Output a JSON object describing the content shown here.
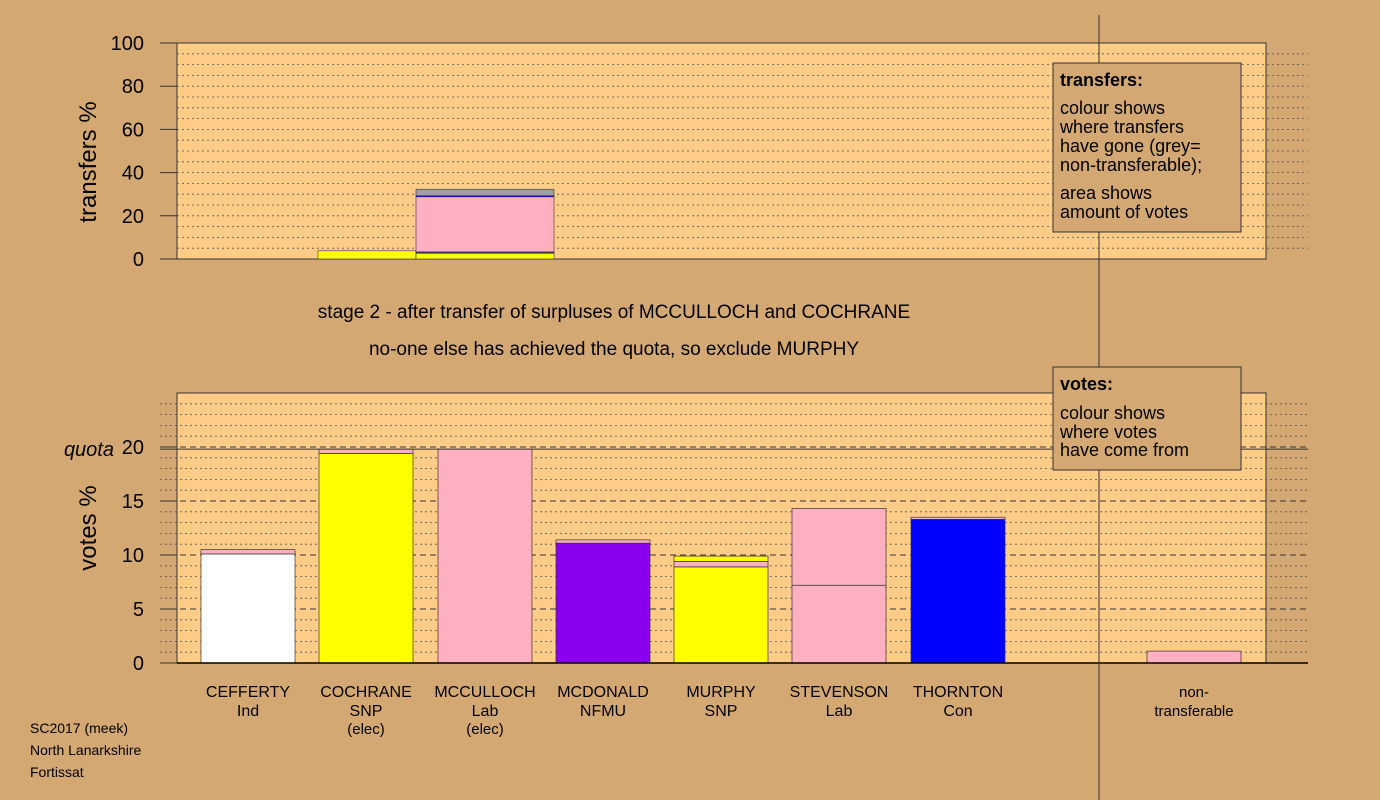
{
  "colors": {
    "background": "#d4a872",
    "plot_area": "#ffcc88",
    "ind": "#ffffff",
    "snp": "#ffff00",
    "lab": "#ffb0c0",
    "nfmu": "#8800ee",
    "con": "#0000ff",
    "non_transferable": "#a0a0a0"
  },
  "chart_data": [
    {
      "id": "transfers",
      "type": "bar",
      "stacked": true,
      "ylabel": "transfers %",
      "ylim": [
        0,
        100
      ],
      "yticks": [
        0,
        20,
        40,
        60,
        80,
        100
      ],
      "bars": [
        {
          "source": "COCHRANE",
          "segments": [
            {
              "label": "SNP",
              "value": 3.8,
              "color": "#ffff00"
            }
          ]
        },
        {
          "source": "MCCULLOCH",
          "segments": [
            {
              "label": "SNP",
              "value": 2.5,
              "color": "#ffff00"
            },
            {
              "label": "Ind",
              "value": 0.5,
              "color": "#ffffff"
            },
            {
              "label": "NFMU",
              "value": 0.3,
              "color": "#8800ee"
            },
            {
              "label": "Lab",
              "value": 25.5,
              "color": "#ffb0c0"
            },
            {
              "label": "Con",
              "value": 0.5,
              "color": "#0000ff"
            },
            {
              "label": "non-transferable",
              "value": 3.0,
              "color": "#a0a0a0"
            }
          ]
        }
      ],
      "legend": {
        "title": "transfers:",
        "lines1": [
          "colour shows",
          "where transfers",
          "have gone (grey=",
          "non-transferable);"
        ],
        "lines2": [
          "area shows",
          "amount of votes"
        ]
      }
    },
    {
      "id": "votes",
      "type": "bar",
      "stacked": true,
      "ylabel": "votes %",
      "ylim": [
        0,
        25
      ],
      "yticks": [
        0,
        5,
        10,
        15,
        20
      ],
      "quota": 19.8,
      "quota_label": "quota",
      "categories": [
        {
          "name": "CEFFERTY",
          "party": "Ind",
          "note": "",
          "segments": [
            {
              "value": 10.1,
              "color": "#ffffff"
            },
            {
              "value": 0.4,
              "color": "#ffb0c0"
            }
          ]
        },
        {
          "name": "COCHRANE",
          "party": "SNP",
          "note": "(elec)",
          "segments": [
            {
              "value": 19.4,
              "color": "#ffff00"
            },
            {
              "value": 0.4,
              "color": "#ffb0c0"
            }
          ]
        },
        {
          "name": "MCCULLOCH",
          "party": "Lab",
          "note": "(elec)",
          "segments": [
            {
              "value": 19.8,
              "color": "#ffb0c0"
            }
          ]
        },
        {
          "name": "MCDONALD",
          "party": "NFMU",
          "note": "",
          "segments": [
            {
              "value": 11.1,
              "color": "#8800ee"
            },
            {
              "value": 0.3,
              "color": "#ffb0c0"
            }
          ]
        },
        {
          "name": "MURPHY",
          "party": "SNP",
          "note": "",
          "segments": [
            {
              "value": 8.9,
              "color": "#ffff00"
            },
            {
              "value": 0.5,
              "color": "#ffb0c0"
            },
            {
              "value": 0.5,
              "color": "#ffff00"
            }
          ]
        },
        {
          "name": "STEVENSON",
          "party": "Lab",
          "note": "",
          "segments": [
            {
              "value": 7.2,
              "color": "#ffb0c0"
            },
            {
              "value": 7.1,
              "color": "#ffb0c0"
            }
          ]
        },
        {
          "name": "THORNTON",
          "party": "Con",
          "note": "",
          "segments": [
            {
              "value": 13.3,
              "color": "#0000ff"
            },
            {
              "value": 0.2,
              "color": "#ffb0c0"
            }
          ]
        },
        {
          "name": "",
          "party": "",
          "note": "",
          "segments": []
        },
        {
          "name": "non-",
          "party": "transferable",
          "note": "",
          "segments": [
            {
              "value": 1.1,
              "color": "#ffb0c0"
            }
          ]
        }
      ],
      "legend": {
        "title": "votes:",
        "lines1": [
          "colour shows",
          "where votes",
          "have come from"
        ]
      }
    }
  ],
  "stage_text": [
    "stage 2 - after transfer of surpluses of MCCULLOCH and COCHRANE",
    "no-one else has achieved the quota, so exclude MURPHY"
  ],
  "footer": [
    "SC2017 (meek)",
    "North Lanarkshire",
    "Fortissat"
  ]
}
